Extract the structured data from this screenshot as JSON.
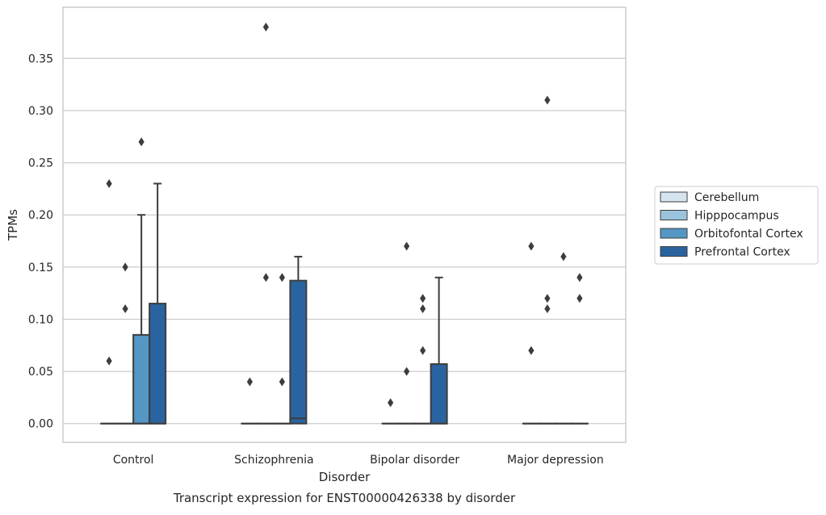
{
  "chart_data": {
    "type": "box",
    "caption": "Transcript expression for ENST00000426338 by disorder",
    "xlabel": "Disorder",
    "ylabel": "TPMs",
    "ylim": [
      -0.018,
      0.399
    ],
    "yticks": [
      0.0,
      0.05,
      0.1,
      0.15,
      0.2,
      0.25,
      0.3,
      0.35
    ],
    "ytick_labels": [
      "0.00",
      "0.05",
      "0.10",
      "0.15",
      "0.20",
      "0.25",
      "0.30",
      "0.35"
    ],
    "grid": "horizontal",
    "legend_position": "right",
    "categories": [
      "Control",
      "Schizophrenia",
      "Bipolar disorder",
      "Major depression"
    ],
    "series": [
      {
        "name": "Cerebellum",
        "color": "#d6e4f0",
        "boxes": [
          {
            "min": 0,
            "q1": 0,
            "median": 0,
            "q3": 0,
            "max": 0,
            "outliers": [
              0.06,
              0.23
            ]
          },
          {
            "min": 0,
            "q1": 0,
            "median": 0,
            "q3": 0,
            "max": 0,
            "outliers": [
              0.04
            ]
          },
          {
            "min": 0,
            "q1": 0,
            "median": 0,
            "q3": 0,
            "max": 0,
            "outliers": [
              0.02
            ]
          },
          {
            "min": 0,
            "q1": 0,
            "median": 0,
            "q3": 0,
            "max": 0,
            "outliers": [
              0.07,
              0.17
            ]
          }
        ]
      },
      {
        "name": "Hipppocampus",
        "color": "#9bc3dc",
        "boxes": [
          {
            "min": 0,
            "q1": 0,
            "median": 0,
            "q3": 0,
            "max": 0,
            "outliers": [
              0.11,
              0.15
            ]
          },
          {
            "min": 0,
            "q1": 0,
            "median": 0,
            "q3": 0,
            "max": 0,
            "outliers": [
              0.14,
              0.38
            ]
          },
          {
            "min": 0,
            "q1": 0,
            "median": 0,
            "q3": 0,
            "max": 0,
            "outliers": [
              0.05,
              0.17
            ]
          },
          {
            "min": 0,
            "q1": 0,
            "median": 0,
            "q3": 0,
            "max": 0,
            "outliers": [
              0.11,
              0.12,
              0.31
            ]
          }
        ]
      },
      {
        "name": "Orbitofontal Cortex",
        "color": "#5496c4",
        "boxes": [
          {
            "min": 0,
            "q1": 0,
            "median": 0,
            "q3": 0.085,
            "max": 0.2,
            "outliers": [
              0.27
            ]
          },
          {
            "min": 0,
            "q1": 0,
            "median": 0,
            "q3": 0,
            "max": 0,
            "outliers": [
              0.04,
              0.14
            ]
          },
          {
            "min": 0,
            "q1": 0,
            "median": 0,
            "q3": 0,
            "max": 0,
            "outliers": [
              0.07,
              0.11,
              0.12
            ]
          },
          {
            "min": 0,
            "q1": 0,
            "median": 0,
            "q3": 0,
            "max": 0,
            "outliers": [
              0.16
            ]
          }
        ]
      },
      {
        "name": "Prefrontal Cortex",
        "color": "#2a64a0",
        "boxes": [
          {
            "min": 0,
            "q1": 0,
            "median": 0,
            "q3": 0.115,
            "max": 0.23,
            "outliers": []
          },
          {
            "min": 0,
            "q1": 0,
            "median": 0.005,
            "q3": 0.137,
            "max": 0.16,
            "outliers": []
          },
          {
            "min": 0,
            "q1": 0,
            "median": 0,
            "q3": 0.057,
            "max": 0.14,
            "outliers": []
          },
          {
            "min": 0,
            "q1": 0,
            "median": 0,
            "q3": 0,
            "max": 0,
            "outliers": [
              0.12,
              0.14
            ]
          }
        ]
      }
    ]
  }
}
